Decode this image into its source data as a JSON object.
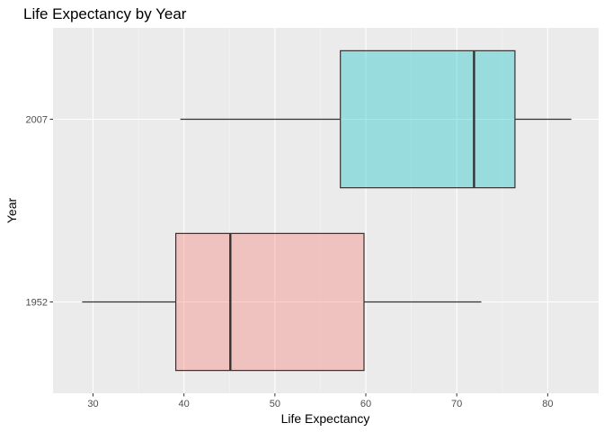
{
  "chart_data": {
    "type": "boxplot",
    "orientation": "horizontal",
    "title": "Life Expectancy by Year",
    "xlabel": "Life Expectancy",
    "ylabel": "Year",
    "xlim": [
      25.6,
      85.6
    ],
    "x_ticks": [
      30,
      40,
      50,
      60,
      70,
      80
    ],
    "grid": true,
    "legend": "none",
    "categories": [
      "1952",
      "2007"
    ],
    "boxes": [
      {
        "category": "1952",
        "min": 28.8,
        "q1": 39.1,
        "median": 45.1,
        "q3": 59.8,
        "max": 72.7,
        "fill": "#F8766D"
      },
      {
        "category": "2007",
        "min": 39.6,
        "q1": 57.2,
        "median": 71.9,
        "q3": 76.4,
        "max": 82.6,
        "fill": "#00BFC4"
      }
    ],
    "colors": {
      "panel": "#EBEBEB",
      "grid": "#FFFFFF",
      "box_outline": "#333333"
    }
  }
}
